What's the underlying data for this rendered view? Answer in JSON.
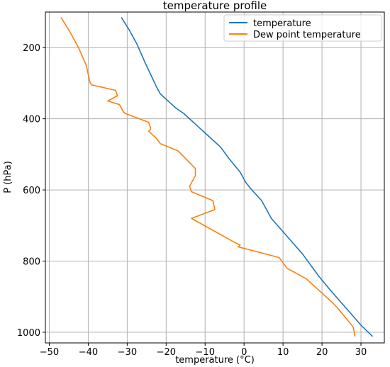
{
  "chart_data": {
    "type": "line",
    "title": "temperature profile",
    "xlabel": "temperature (°C)",
    "ylabel": "P (hPa)",
    "xlim": [
      -51,
      36
    ],
    "ylim": [
      1030,
      100
    ],
    "y_inverted": true,
    "xticks": [
      -50,
      -40,
      -30,
      -20,
      -10,
      0,
      10,
      20,
      30
    ],
    "yticks": [
      200,
      400,
      600,
      800,
      1000
    ],
    "grid": true,
    "legend_position": "top-right",
    "series": [
      {
        "name": "temperature",
        "color": "#1f77b4",
        "points": [
          [
            -31.5,
            115
          ],
          [
            -29.5,
            150
          ],
          [
            -27.5,
            190
          ],
          [
            -25.5,
            240
          ],
          [
            -24,
            275
          ],
          [
            -22.5,
            310
          ],
          [
            -21.5,
            330
          ],
          [
            -19.5,
            350
          ],
          [
            -17.5,
            370
          ],
          [
            -15.5,
            385
          ],
          [
            -14,
            400
          ],
          [
            -12,
            420
          ],
          [
            -10,
            440
          ],
          [
            -8,
            460
          ],
          [
            -6,
            480
          ],
          [
            -4,
            510
          ],
          [
            -1,
            550
          ],
          [
            0.5,
            580
          ],
          [
            2,
            600
          ],
          [
            4.5,
            630
          ],
          [
            7,
            680
          ],
          [
            11,
            730
          ],
          [
            15,
            780
          ],
          [
            19,
            840
          ],
          [
            22,
            880
          ],
          [
            26,
            930
          ],
          [
            30,
            980
          ],
          [
            33,
            1012
          ]
        ]
      },
      {
        "name": "Dew point temperature",
        "color": "#ff7f0e",
        "points": [
          [
            -47,
            115
          ],
          [
            -45,
            150
          ],
          [
            -42.5,
            200
          ],
          [
            -40.5,
            250
          ],
          [
            -39.5,
            300
          ],
          [
            -39,
            305
          ],
          [
            -33,
            320
          ],
          [
            -32.5,
            335
          ],
          [
            -35,
            350
          ],
          [
            -32,
            360
          ],
          [
            -31,
            380
          ],
          [
            -30.5,
            385
          ],
          [
            -24.5,
            410
          ],
          [
            -24,
            425
          ],
          [
            -24,
            430
          ],
          [
            -24.5,
            435
          ],
          [
            -22.5,
            455
          ],
          [
            -21.5,
            470
          ],
          [
            -17,
            490
          ],
          [
            -16.5,
            495
          ],
          [
            -12.5,
            540
          ],
          [
            -12.5,
            560
          ],
          [
            -13.5,
            580
          ],
          [
            -14,
            590
          ],
          [
            -13.5,
            605
          ],
          [
            -8,
            630
          ],
          [
            -7.5,
            655
          ],
          [
            -13.5,
            680
          ],
          [
            -2,
            750
          ],
          [
            -1,
            755
          ],
          [
            -1.5,
            760
          ],
          [
            9,
            790
          ],
          [
            11,
            820
          ],
          [
            16,
            850
          ],
          [
            18,
            870
          ],
          [
            19,
            880
          ],
          [
            23,
            920
          ],
          [
            25,
            945
          ],
          [
            26.5,
            965
          ],
          [
            28,
            985
          ],
          [
            28.5,
            1012
          ]
        ]
      }
    ]
  }
}
